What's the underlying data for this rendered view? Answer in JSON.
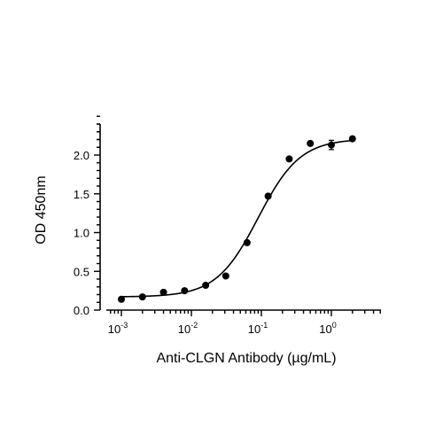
{
  "chart_data": {
    "type": "scatter",
    "xlabel": "Anti-CLGN Antibody (µg/mL)",
    "ylabel": "OD 450nm",
    "x_scale": "log",
    "xlim": [
      0.0007,
      4
    ],
    "ylim": [
      0,
      2.5
    ],
    "y_ticks": [
      "0.0",
      "0.5",
      "1.0",
      "1.5",
      "2.0"
    ],
    "x_ticks": [
      {
        "base": "10",
        "exp": "-3",
        "value": 0.001
      },
      {
        "base": "10",
        "exp": "-2",
        "value": 0.01
      },
      {
        "base": "10",
        "exp": "-1",
        "value": 0.1
      },
      {
        "base": "10",
        "exp": "0",
        "value": 1
      }
    ],
    "grid": false,
    "series": [
      {
        "x": [
          0.001,
          0.002,
          0.004,
          0.008,
          0.016,
          0.031,
          0.0625,
          0.125,
          0.25,
          0.5,
          1.0,
          2.0
        ],
        "y": [
          0.14,
          0.17,
          0.23,
          0.25,
          0.32,
          0.44,
          0.87,
          1.47,
          1.95,
          2.15,
          2.13,
          2.21
        ],
        "yerr": [
          0.01,
          0.01,
          0.01,
          0.01,
          0.01,
          0.01,
          0.02,
          0.02,
          0.02,
          0.02,
          0.06,
          0.02
        ],
        "fit": {
          "model": "4PL",
          "bottom": 0.17,
          "top": 2.21,
          "ec50": 0.09,
          "hill": 1.45
        }
      }
    ]
  }
}
